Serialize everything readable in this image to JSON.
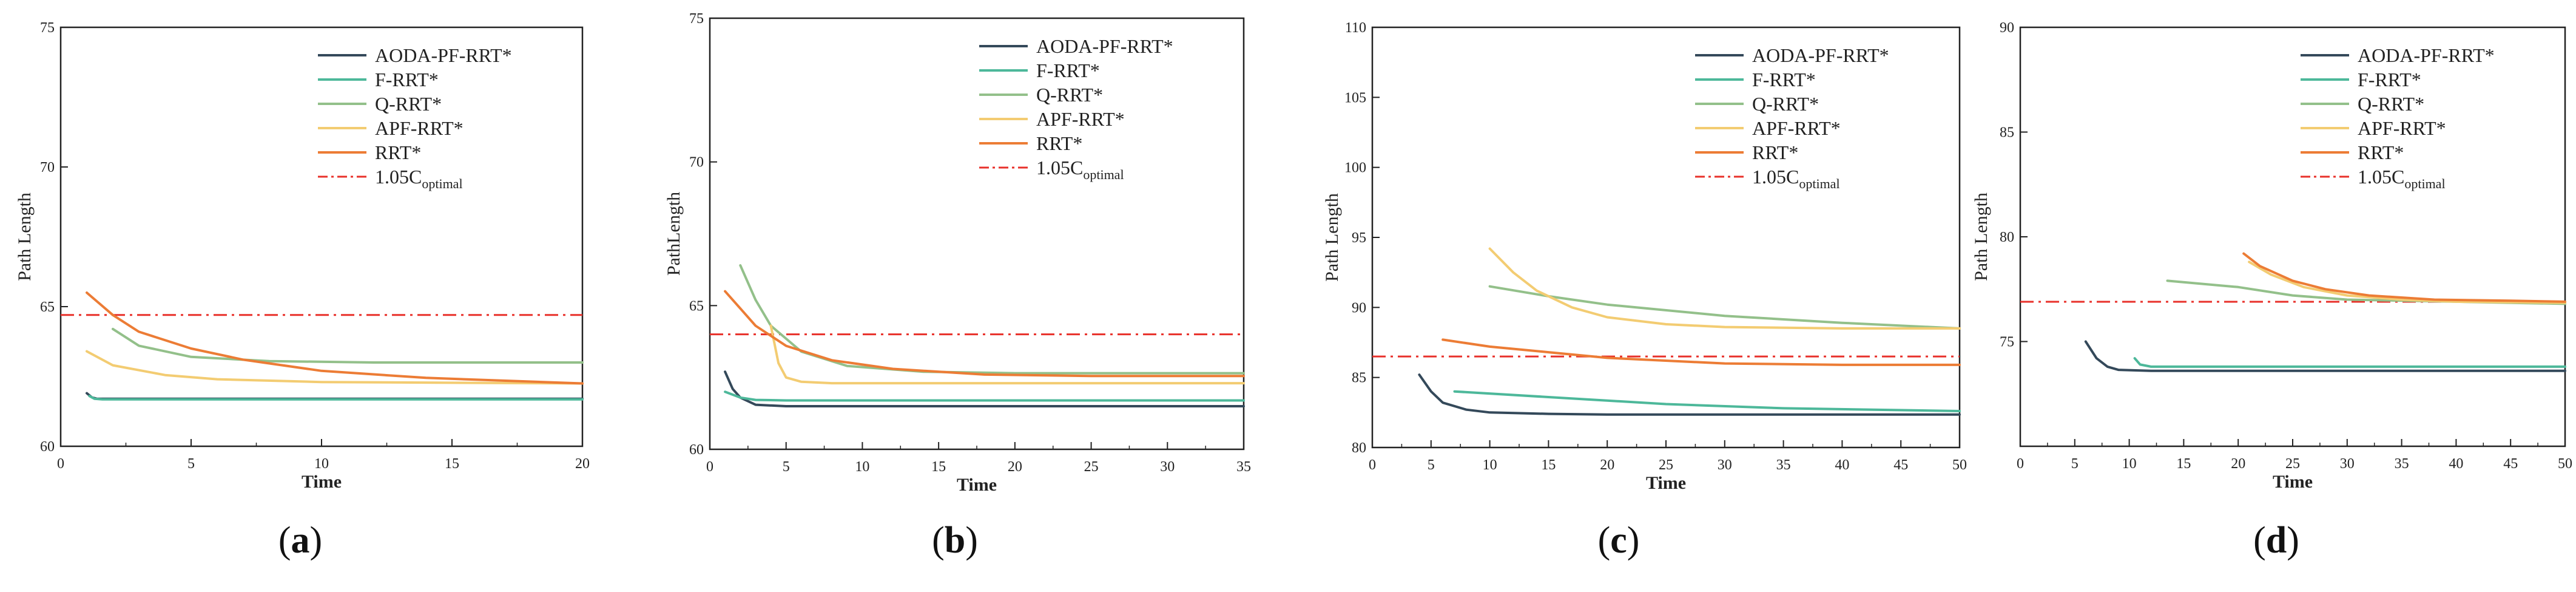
{
  "colors": {
    "AODA-PF-RRT*": "#34495a",
    "F-RRT*": "#4db89a",
    "Q-RRT*": "#93c08a",
    "APF-RRT*": "#f3cc72",
    "RRT*": "#ec7c35",
    "ref": "#e8302a"
  },
  "panel_labels": [
    {
      "open": "(",
      "letter": "a",
      "close": ")"
    },
    {
      "open": "(",
      "letter": "b",
      "close": ")"
    },
    {
      "open": "(",
      "letter": "c",
      "close": ")"
    },
    {
      "open": "(",
      "letter": "d",
      "close": ")"
    }
  ],
  "chart_data": [
    {
      "type": "line",
      "panel": "a",
      "xlabel": "Time",
      "ylabel": "Path Length",
      "xlim": [
        0,
        20
      ],
      "ylim": [
        60,
        75
      ],
      "xticks": [
        "0",
        "5",
        "10",
        "15",
        "20"
      ],
      "yticks": [
        "60",
        "65",
        "70",
        "75"
      ],
      "legend": [
        "AODA-PF-RRT*",
        "F-RRT*",
        "Q-RRT*",
        "APF-RRT*",
        "RRT*"
      ],
      "reference": {
        "label_prefix": "1.05C",
        "label_sub": "optimal",
        "y": 64.7
      },
      "series": [
        {
          "name": "AODA-PF-RRT*",
          "x": [
            1,
            1.2,
            1.4,
            2,
            20
          ],
          "y": [
            61.9,
            61.75,
            61.7,
            61.7,
            61.7
          ]
        },
        {
          "name": "F-RRT*",
          "x": [
            1.1,
            1.3,
            1.6,
            2.5,
            20
          ],
          "y": [
            61.8,
            61.7,
            61.68,
            61.68,
            61.68
          ]
        },
        {
          "name": "Q-RRT*",
          "x": [
            2,
            3,
            5,
            8,
            12,
            20
          ],
          "y": [
            64.2,
            63.6,
            63.2,
            63.05,
            63.0,
            63.0
          ]
        },
        {
          "name": "APF-RRT*",
          "x": [
            1,
            2,
            4,
            6,
            10,
            20
          ],
          "y": [
            63.4,
            62.9,
            62.55,
            62.4,
            62.3,
            62.25
          ]
        },
        {
          "name": "RRT*",
          "x": [
            1,
            2,
            3,
            5,
            7,
            10,
            14,
            20
          ],
          "y": [
            65.5,
            64.7,
            64.1,
            63.5,
            63.1,
            62.7,
            62.45,
            62.25
          ]
        }
      ]
    },
    {
      "type": "line",
      "panel": "b",
      "xlabel": "Time",
      "ylabel": "PathLength",
      "xlim": [
        0,
        35
      ],
      "ylim": [
        60,
        75
      ],
      "xticks": [
        "0",
        "5",
        "10",
        "15",
        "20",
        "25",
        "30",
        "35"
      ],
      "yticks": [
        "60",
        "65",
        "70",
        "75"
      ],
      "legend": [
        "AODA-PF-RRT*",
        "F-RRT*",
        "Q-RRT*",
        "APF-RRT*",
        "RRT*"
      ],
      "reference": {
        "label_prefix": "1.05C",
        "label_sub": "optimal",
        "y": 64.0
      },
      "series": [
        {
          "name": "AODA-PF-RRT*",
          "x": [
            1,
            1.5,
            2,
            3,
            5,
            35
          ],
          "y": [
            62.7,
            62.1,
            61.8,
            61.55,
            61.5,
            61.5
          ]
        },
        {
          "name": "F-RRT*",
          "x": [
            1,
            2,
            3,
            5,
            35
          ],
          "y": [
            62.0,
            61.8,
            61.72,
            61.7,
            61.7
          ]
        },
        {
          "name": "Q-RRT*",
          "x": [
            2,
            3,
            4,
            6,
            9,
            14,
            20,
            35
          ],
          "y": [
            66.4,
            65.2,
            64.3,
            63.4,
            62.9,
            62.7,
            62.65,
            62.65
          ]
        },
        {
          "name": "APF-RRT*",
          "x": [
            4,
            4.5,
            5,
            6,
            8,
            35
          ],
          "y": [
            64.3,
            63.0,
            62.5,
            62.35,
            62.3,
            62.3
          ]
        },
        {
          "name": "RRT*",
          "x": [
            1,
            2,
            3,
            5,
            8,
            12,
            18,
            25,
            35
          ],
          "y": [
            65.5,
            64.9,
            64.3,
            63.6,
            63.1,
            62.8,
            62.6,
            62.55,
            62.55
          ]
        }
      ]
    },
    {
      "type": "line",
      "panel": "c",
      "xlabel": "Time",
      "ylabel": "Path Length",
      "xlim": [
        0,
        50
      ],
      "ylim": [
        80,
        110
      ],
      "xticks": [
        "0",
        "5",
        "10",
        "15",
        "20",
        "25",
        "30",
        "35",
        "40",
        "45",
        "50"
      ],
      "yticks": [
        "80",
        "85",
        "90",
        "95",
        "100",
        "105",
        "110"
      ],
      "legend": [
        "AODA-PF-RRT*",
        "F-RRT*",
        "Q-RRT*",
        "APF-RRT*",
        "RRT*"
      ],
      "reference": {
        "label_prefix": "1.05C",
        "label_sub": "optimal",
        "y": 86.5
      },
      "series": [
        {
          "name": "AODA-PF-RRT*",
          "x": [
            4,
            5,
            6,
            8,
            10,
            15,
            20,
            50
          ],
          "y": [
            85.2,
            84.0,
            83.2,
            82.7,
            82.5,
            82.4,
            82.35,
            82.35
          ]
        },
        {
          "name": "F-RRT*",
          "x": [
            7,
            15,
            25,
            35,
            50
          ],
          "y": [
            84.0,
            83.6,
            83.1,
            82.8,
            82.6
          ]
        },
        {
          "name": "Q-RRT*",
          "x": [
            10,
            15,
            20,
            30,
            40,
            50
          ],
          "y": [
            91.5,
            90.8,
            90.2,
            89.4,
            88.9,
            88.5
          ]
        },
        {
          "name": "APF-RRT*",
          "x": [
            10,
            12,
            14,
            17,
            20,
            25,
            30,
            40,
            50
          ],
          "y": [
            94.2,
            92.5,
            91.2,
            90.0,
            89.3,
            88.8,
            88.6,
            88.5,
            88.5
          ]
        },
        {
          "name": "RRT*",
          "x": [
            6,
            10,
            15,
            20,
            30,
            40,
            50
          ],
          "y": [
            87.7,
            87.2,
            86.8,
            86.4,
            86.0,
            85.9,
            85.9
          ]
        }
      ]
    },
    {
      "type": "line",
      "panel": "d",
      "xlabel": "Time",
      "ylabel": "Path Length",
      "xlim": [
        0,
        50
      ],
      "ylim": [
        70,
        90
      ],
      "xticks": [
        "0",
        "5",
        "10",
        "15",
        "20",
        "25",
        "30",
        "35",
        "40",
        "45",
        "50"
      ],
      "yticks": [
        "75",
        "80",
        "85",
        "90"
      ],
      "legend": [
        "AODA-PF-RRT*",
        "F-RRT*",
        "Q-RRT*",
        "APF-RRT*",
        "RRT*"
      ],
      "reference": {
        "label_prefix": "1.05C",
        "label_sub": "optimal",
        "y": 76.9
      },
      "series": [
        {
          "name": "AODA-PF-RRT*",
          "x": [
            6,
            7,
            8,
            9,
            12,
            50
          ],
          "y": [
            75.0,
            74.2,
            73.8,
            73.65,
            73.6,
            73.6
          ]
        },
        {
          "name": "F-RRT*",
          "x": [
            10.5,
            11,
            12,
            15,
            50
          ],
          "y": [
            74.2,
            73.9,
            73.8,
            73.8,
            73.8
          ]
        },
        {
          "name": "Q-RRT*",
          "x": [
            13.5,
            20,
            25,
            30,
            40,
            50
          ],
          "y": [
            77.9,
            77.6,
            77.2,
            77.0,
            76.9,
            76.8
          ]
        },
        {
          "name": "APF-RRT*",
          "x": [
            21,
            23,
            26,
            30,
            35,
            40,
            50
          ],
          "y": [
            78.8,
            78.2,
            77.6,
            77.2,
            77.0,
            76.9,
            76.85
          ]
        },
        {
          "name": "RRT*",
          "x": [
            20.5,
            22,
            25,
            28,
            32,
            38,
            45,
            50
          ],
          "y": [
            79.2,
            78.6,
            77.9,
            77.5,
            77.2,
            77.0,
            76.95,
            76.9
          ]
        }
      ]
    }
  ]
}
